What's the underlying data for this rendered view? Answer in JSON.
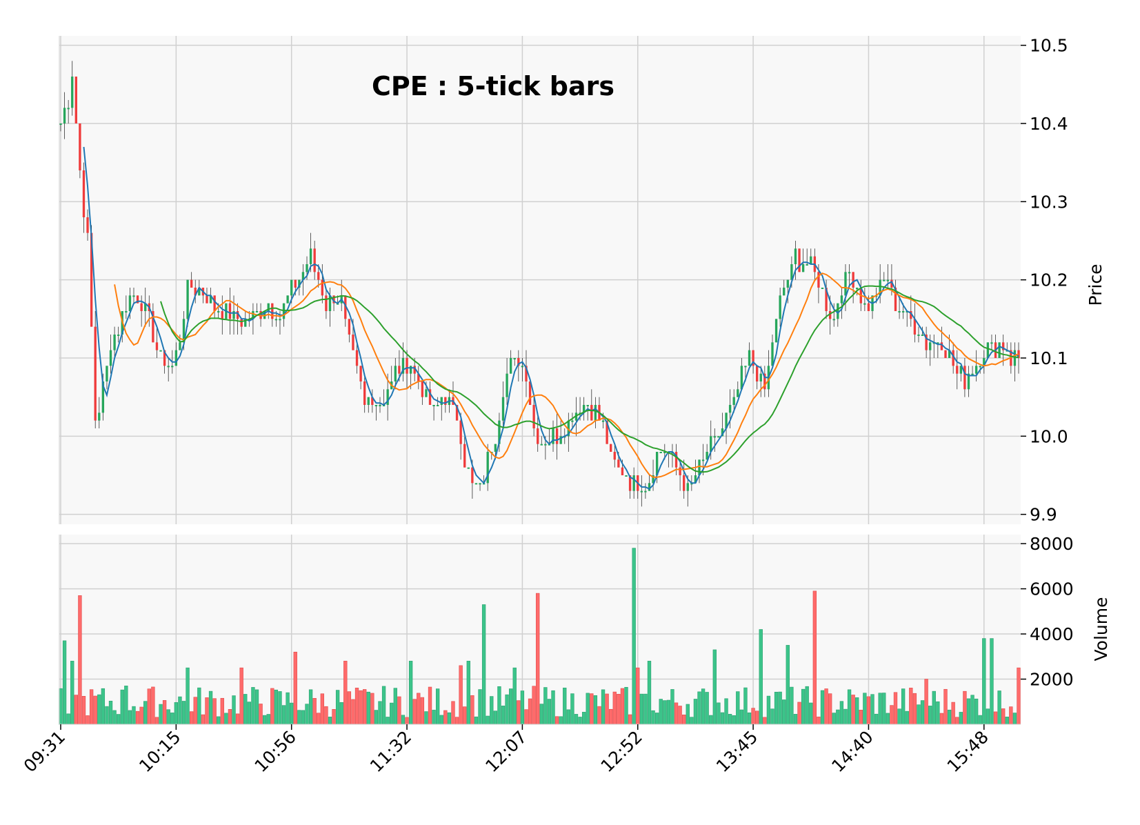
{
  "chart_data": {
    "type": "candlestick",
    "title": "CPE : 5-tick bars",
    "price_panel": {
      "ylabel": "Price",
      "ylim": [
        9.89,
        10.505
      ],
      "y_ticks": [
        "9.9",
        "10.0",
        "10.1",
        "10.2",
        "10.3",
        "10.4",
        "10.5"
      ],
      "y_tick_values": [
        9.9,
        10.0,
        10.1,
        10.2,
        10.3,
        10.4,
        10.5
      ],
      "grid": true
    },
    "volume_panel": {
      "ylabel": "Volume",
      "ylim": [
        0,
        8400
      ],
      "y_ticks": [
        "2000",
        "4000",
        "6000",
        "8000"
      ],
      "y_tick_values": [
        2000,
        4000,
        6000,
        8000
      ],
      "grid": true
    },
    "x_ticks": [
      {
        "label": "09:31",
        "bar": 0
      },
      {
        "label": "10:15",
        "bar": 30
      },
      {
        "label": "10:56",
        "bar": 60
      },
      {
        "label": "11:32",
        "bar": 90
      },
      {
        "label": "12:07",
        "bar": 120
      },
      {
        "label": "12:52",
        "bar": 150
      },
      {
        "label": "13:45",
        "bar": 180
      },
      {
        "label": "14:40",
        "bar": 210
      },
      {
        "label": "15:48",
        "bar": 240
      }
    ],
    "bar_count": 250,
    "price_anchors": [
      [
        0,
        10.4
      ],
      [
        2,
        10.43
      ],
      [
        3,
        10.47
      ],
      [
        5,
        10.34
      ],
      [
        7,
        10.25
      ],
      [
        9,
        10.02
      ],
      [
        11,
        10.06
      ],
      [
        13,
        10.12
      ],
      [
        15,
        10.14
      ],
      [
        18,
        10.18
      ],
      [
        21,
        10.17
      ],
      [
        24,
        10.13
      ],
      [
        26,
        10.1
      ],
      [
        29,
        10.09
      ],
      [
        31,
        10.13
      ],
      [
        33,
        10.19
      ],
      [
        36,
        10.19
      ],
      [
        39,
        10.17
      ],
      [
        42,
        10.16
      ],
      [
        45,
        10.15
      ],
      [
        48,
        10.15
      ],
      [
        51,
        10.16
      ],
      [
        54,
        10.17
      ],
      [
        57,
        10.15
      ],
      [
        60,
        10.19
      ],
      [
        63,
        10.21
      ],
      [
        65,
        10.23
      ],
      [
        67,
        10.2
      ],
      [
        69,
        10.17
      ],
      [
        71,
        10.18
      ],
      [
        73,
        10.17
      ],
      [
        75,
        10.12
      ],
      [
        77,
        10.08
      ],
      [
        79,
        10.04
      ],
      [
        81,
        10.05
      ],
      [
        83,
        10.04
      ],
      [
        85,
        10.06
      ],
      [
        87,
        10.08
      ],
      [
        89,
        10.09
      ],
      [
        91,
        10.09
      ],
      [
        93,
        10.07
      ],
      [
        95,
        10.05
      ],
      [
        97,
        10.03
      ],
      [
        99,
        10.05
      ],
      [
        101,
        10.04
      ],
      [
        103,
        10.03
      ],
      [
        105,
        9.97
      ],
      [
        107,
        9.94
      ],
      [
        109,
        9.93
      ],
      [
        111,
        9.97
      ],
      [
        113,
        10.0
      ],
      [
        115,
        10.06
      ],
      [
        117,
        10.09
      ],
      [
        119,
        10.1
      ],
      [
        121,
        10.08
      ],
      [
        123,
        10.01
      ],
      [
        125,
        9.99
      ],
      [
        127,
        10.0
      ],
      [
        129,
        10.0
      ],
      [
        131,
        10.01
      ],
      [
        133,
        10.03
      ],
      [
        135,
        10.04
      ],
      [
        137,
        10.04
      ],
      [
        139,
        10.03
      ],
      [
        141,
        10.01
      ],
      [
        143,
        9.97
      ],
      [
        145,
        9.96
      ],
      [
        147,
        9.95
      ],
      [
        149,
        9.94
      ],
      [
        151,
        9.94
      ],
      [
        153,
        9.94
      ],
      [
        155,
        9.98
      ],
      [
        157,
        9.98
      ],
      [
        159,
        9.97
      ],
      [
        161,
        9.95
      ],
      [
        163,
        9.93
      ],
      [
        165,
        9.95
      ],
      [
        167,
        9.97
      ],
      [
        169,
        9.99
      ],
      [
        171,
        10.0
      ],
      [
        173,
        10.02
      ],
      [
        175,
        10.04
      ],
      [
        177,
        10.08
      ],
      [
        179,
        10.1
      ],
      [
        181,
        10.08
      ],
      [
        183,
        10.06
      ],
      [
        185,
        10.12
      ],
      [
        187,
        10.17
      ],
      [
        189,
        10.2
      ],
      [
        191,
        10.23
      ],
      [
        193,
        10.22
      ],
      [
        195,
        10.22
      ],
      [
        197,
        10.2
      ],
      [
        199,
        10.17
      ],
      [
        201,
        10.15
      ],
      [
        203,
        10.19
      ],
      [
        205,
        10.21
      ],
      [
        207,
        10.19
      ],
      [
        209,
        10.17
      ],
      [
        211,
        10.17
      ],
      [
        213,
        10.19
      ],
      [
        215,
        10.2
      ],
      [
        217,
        10.17
      ],
      [
        219,
        10.16
      ],
      [
        221,
        10.15
      ],
      [
        223,
        10.14
      ],
      [
        225,
        10.12
      ],
      [
        227,
        10.12
      ],
      [
        229,
        10.12
      ],
      [
        231,
        10.1
      ],
      [
        233,
        10.08
      ],
      [
        235,
        10.07
      ],
      [
        237,
        10.09
      ],
      [
        239,
        10.1
      ],
      [
        241,
        10.11
      ],
      [
        243,
        10.11
      ],
      [
        245,
        10.12
      ],
      [
        247,
        10.1
      ],
      [
        249,
        10.1
      ]
    ],
    "volume_spikes": [
      [
        1,
        3700
      ],
      [
        3,
        2800
      ],
      [
        5,
        5700
      ],
      [
        17,
        1700
      ],
      [
        33,
        2500
      ],
      [
        47,
        2500
      ],
      [
        61,
        3200
      ],
      [
        74,
        2800
      ],
      [
        91,
        2800
      ],
      [
        104,
        2600
      ],
      [
        106,
        2800
      ],
      [
        110,
        5300
      ],
      [
        118,
        2500
      ],
      [
        124,
        5800
      ],
      [
        149,
        7800
      ],
      [
        150,
        2500
      ],
      [
        153,
        2800
      ],
      [
        170,
        3300
      ],
      [
        182,
        4200
      ],
      [
        189,
        3500
      ],
      [
        196,
        5900
      ],
      [
        225,
        2000
      ],
      [
        240,
        3800
      ],
      [
        242,
        3800
      ],
      [
        249,
        2500
      ]
    ],
    "series": [
      {
        "name": "",
        "type": "volume"
      },
      {
        "name": "",
        "type": "moving_average",
        "period": 4,
        "color": "#1f77b4"
      },
      {
        "name": "",
        "type": "moving_average",
        "period": 12,
        "color": "#ff7f0e"
      },
      {
        "name": "",
        "type": "moving_average",
        "period": 24,
        "color": "#2ca02c"
      }
    ],
    "colors": {
      "up": "#26a65b",
      "down": "#ef3b3b",
      "up_volume": "#3cc48a",
      "down_volume": "#ff6b6b",
      "panel_background": "#f8f8f8",
      "grid": "#d0d0d0"
    },
    "legend": "none"
  }
}
